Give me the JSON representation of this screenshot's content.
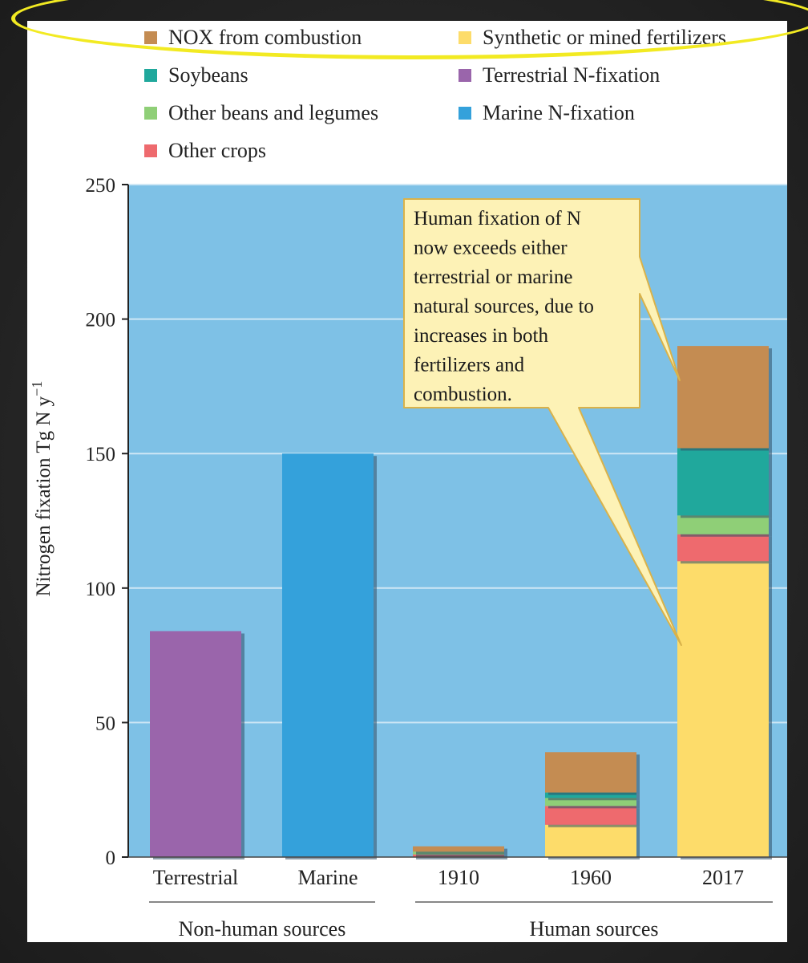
{
  "chart_data": {
    "type": "bar",
    "stacked": true,
    "title": "",
    "xlabel": "",
    "ylabel": "Nitrogen fixation Tg N y",
    "ylabel_superscript": "−1",
    "ylim": [
      0,
      250
    ],
    "yticks": [
      0,
      50,
      100,
      150,
      200,
      250
    ],
    "grid": true,
    "legend_position": "top",
    "categories": [
      "Terrestrial",
      "Marine",
      "1910",
      "1960",
      "2017"
    ],
    "groups": [
      {
        "label": "Non-human sources",
        "categories": [
          "Terrestrial",
          "Marine"
        ]
      },
      {
        "label": "Human sources",
        "categories": [
          "1910",
          "1960",
          "2017"
        ]
      }
    ],
    "series": [
      {
        "name": "Synthetic or mined fertilizers",
        "color": "#fddc6a",
        "values": [
          0,
          0,
          0,
          12,
          110
        ]
      },
      {
        "name": "Other crops",
        "color": "#ee6a6e",
        "values": [
          0,
          0,
          1,
          7,
          10
        ]
      },
      {
        "name": "Other beans and legumes",
        "color": "#8fcf77",
        "values": [
          0,
          0,
          1,
          3,
          7
        ]
      },
      {
        "name": "Soybeans",
        "color": "#20a89c",
        "values": [
          0,
          0,
          0,
          2,
          25
        ]
      },
      {
        "name": "NOX from combustion",
        "color": "#c48c52",
        "values": [
          0,
          0,
          2,
          15,
          38
        ]
      },
      {
        "name": "Terrestrial N-fixation",
        "color": "#9a65ab",
        "values": [
          84,
          0,
          0,
          0,
          0
        ]
      },
      {
        "name": "Marine N-fixation",
        "color": "#34a1db",
        "values": [
          0,
          150,
          0,
          0,
          0
        ]
      }
    ],
    "legend": [
      "NOX from combustion",
      "Synthetic or mined fertilizers",
      "Soybeans",
      "Terrestrial N-fixation",
      "Other beans and legumes",
      "Marine N-fixation",
      "Other crops"
    ],
    "annotation": {
      "lines": [
        "Human fixation of N",
        "now exceeds either",
        "terrestrial or marine",
        "natural sources, due to",
        "increases in both",
        "fertilizers and",
        "combustion."
      ]
    },
    "colors": {
      "plot_background": "#7ec1e6",
      "gridline": "#cfe7f5",
      "callout_fill": "#fdf2b6",
      "callout_border": "#d9b24a",
      "highlight": "#f2ea22"
    }
  }
}
